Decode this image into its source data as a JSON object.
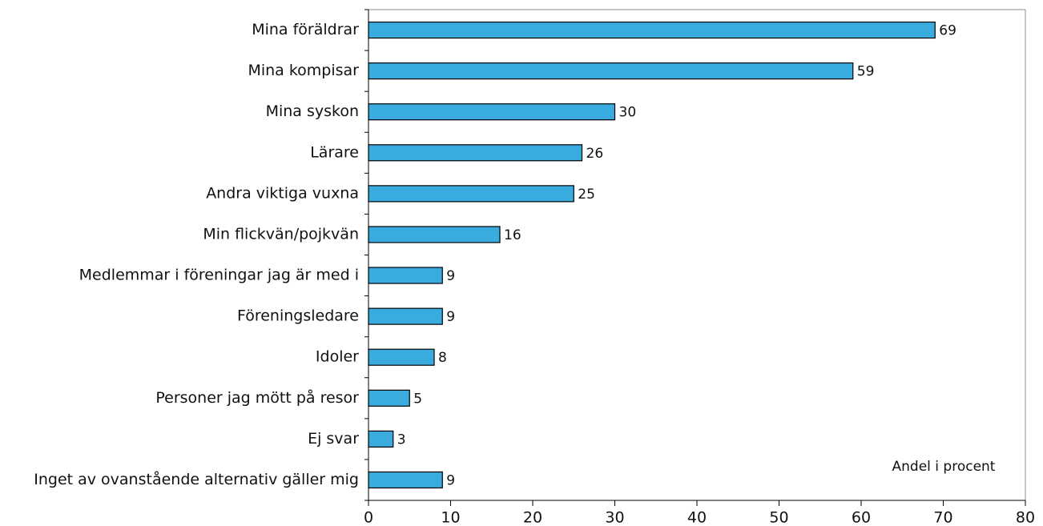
{
  "chart_data": {
    "type": "bar",
    "orientation": "horizontal",
    "categories": [
      "Mina föräldrar",
      "Mina kompisar",
      "Mina syskon",
      "Lärare",
      "Andra viktiga vuxna",
      "Min flickvän/pojkvän",
      "Medlemmar i föreningar jag är med i",
      "Föreningsledare",
      "Idoler",
      "Personer jag mött på resor",
      "Ej svar",
      "Inget av ovanstående alternativ gäller mig"
    ],
    "values": [
      69,
      59,
      30,
      26,
      25,
      16,
      9,
      9,
      8,
      5,
      3,
      9
    ],
    "color": "#3aabdf",
    "xlim": [
      0,
      80
    ],
    "xticks": [
      0,
      10,
      20,
      30,
      40,
      50,
      60,
      70,
      80
    ],
    "annotation": "Andel i procent"
  }
}
